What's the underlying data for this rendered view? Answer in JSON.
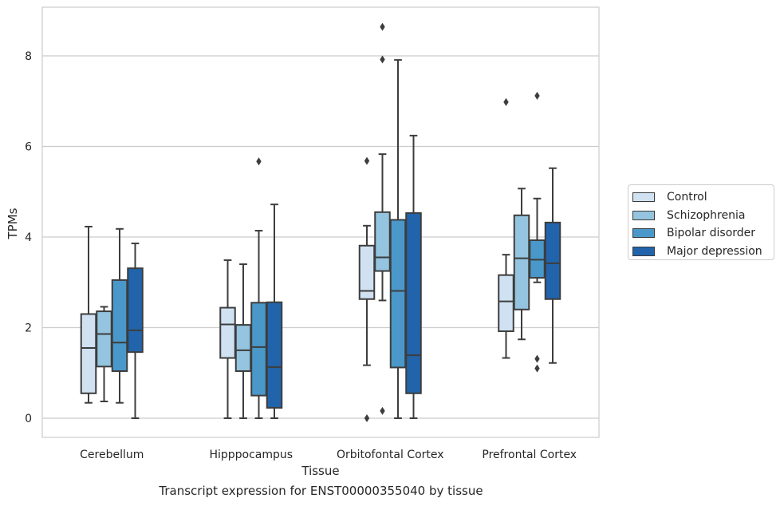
{
  "chart_data": {
    "type": "box",
    "xlabel": "Tissue",
    "ylabel": "TPMs",
    "caption": "Transcript expression for ENST00000355040 by tissue",
    "ylim": [
      -0.4,
      9.1
    ],
    "yticks": [
      0,
      2,
      4,
      6,
      8
    ],
    "grid": "horizontal",
    "legend_position": "right",
    "categories": [
      "Cerebellum",
      "Hipppocampus",
      "Orbitofontal Cortex",
      "Prefrontal Cortex"
    ],
    "series": [
      {
        "name": "Control",
        "color": "#d0e1f2",
        "boxes": [
          {
            "whislo": 0.34,
            "q1": 0.55,
            "med": 1.55,
            "q3": 2.3,
            "whishi": 4.23,
            "fliers": []
          },
          {
            "whislo": 0.0,
            "q1": 1.33,
            "med": 2.07,
            "q3": 2.44,
            "whishi": 3.49,
            "fliers": []
          },
          {
            "whislo": 1.17,
            "q1": 2.63,
            "med": 2.81,
            "q3": 3.81,
            "whishi": 4.25,
            "fliers": [
              5.68,
              0.0
            ]
          },
          {
            "whislo": 1.33,
            "q1": 1.92,
            "med": 2.58,
            "q3": 3.16,
            "whishi": 3.61,
            "fliers": [
              6.98
            ]
          }
        ]
      },
      {
        "name": "Schizophrenia",
        "color": "#94c4df",
        "boxes": [
          {
            "whislo": 0.37,
            "q1": 1.14,
            "med": 1.86,
            "q3": 2.36,
            "whishi": 2.46,
            "fliers": []
          },
          {
            "whislo": 0.0,
            "q1": 1.04,
            "med": 1.5,
            "q3": 2.06,
            "whishi": 3.4,
            "fliers": []
          },
          {
            "whislo": 2.6,
            "q1": 3.25,
            "med": 3.55,
            "q3": 4.55,
            "whishi": 5.83,
            "fliers": [
              7.92,
              8.64,
              0.16
            ]
          },
          {
            "whislo": 1.74,
            "q1": 2.4,
            "med": 3.53,
            "q3": 4.48,
            "whishi": 5.07,
            "fliers": []
          }
        ]
      },
      {
        "name": "Bipolar disorder",
        "color": "#4a98c9",
        "boxes": [
          {
            "whislo": 0.34,
            "q1": 1.04,
            "med": 1.67,
            "q3": 3.05,
            "whishi": 4.18,
            "fliers": []
          },
          {
            "whislo": 0.0,
            "q1": 0.5,
            "med": 1.57,
            "q3": 2.55,
            "whishi": 4.14,
            "fliers": [
              5.67
            ]
          },
          {
            "whislo": 0.0,
            "q1": 1.12,
            "med": 2.81,
            "q3": 4.38,
            "whishi": 7.91,
            "fliers": []
          },
          {
            "whislo": 3.0,
            "q1": 3.1,
            "med": 3.5,
            "q3": 3.93,
            "whishi": 4.85,
            "fliers": [
              7.12,
              1.31,
              1.1
            ]
          }
        ]
      },
      {
        "name": "Major depression",
        "color": "#2164ab",
        "boxes": [
          {
            "whislo": 0.0,
            "q1": 1.46,
            "med": 1.94,
            "q3": 3.31,
            "whishi": 3.86,
            "fliers": []
          },
          {
            "whislo": 0.0,
            "q1": 0.23,
            "med": 1.13,
            "q3": 2.56,
            "whishi": 4.72,
            "fliers": []
          },
          {
            "whislo": 0.0,
            "q1": 0.55,
            "med": 1.39,
            "q3": 4.53,
            "whishi": 6.24,
            "fliers": []
          },
          {
            "whislo": 1.22,
            "q1": 2.63,
            "med": 3.42,
            "q3": 4.32,
            "whishi": 5.52,
            "fliers": []
          }
        ]
      }
    ]
  }
}
